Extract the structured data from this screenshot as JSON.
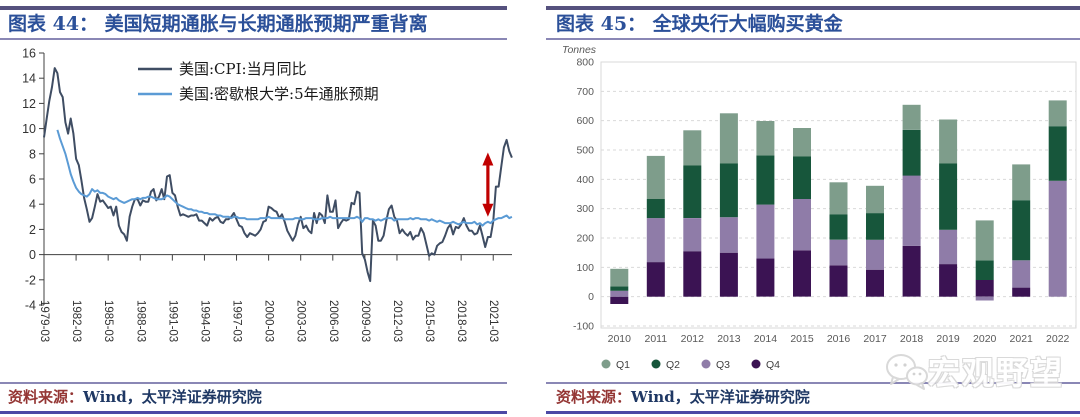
{
  "panels": [
    {
      "title": "图表 44： 美国短期通胀与长期通胀预期严重背离",
      "source_label": "资料来源：",
      "source_text": "Wind，太平洋证券研究院"
    },
    {
      "title": "图表 45： 全球央行大幅购买黄金",
      "source_label": "资料来源：",
      "source_text": "Wind，太平洋证券研究院"
    }
  ],
  "watermark": {
    "text": "宏观野望",
    "icon": "wechat-icon"
  },
  "colors": {
    "rule_top": "#55517E",
    "rule_thin": "#8A87B5",
    "rule_bottom": "#4B48A5",
    "title_text": "#2B5099",
    "source_label": "#943634",
    "source_text": "#1F3864",
    "axis_text": "#333333",
    "axis_line": "#404040",
    "grid_line": "#D9D9D9",
    "muted_text": "#595959",
    "annotation_red": "#C00000"
  },
  "chart_data": [
    {
      "type": "line",
      "title": "美国短期通胀与长期通胀预期严重背离",
      "x_unit": "quarter",
      "x_start_label": "1979-03",
      "x_tick_every_quarters": 12,
      "x_tick_labels": [
        "1979-03",
        "1982-03",
        "1985-03",
        "1988-03",
        "1991-03",
        "1994-03",
        "1997-03",
        "2000-03",
        "2003-03",
        "2006-03",
        "2009-03",
        "2012-03",
        "2015-03",
        "2018-03",
        "2021-03"
      ],
      "ylim": [
        -4,
        16
      ],
      "y_ticks": [
        16,
        14,
        12,
        10,
        8,
        6,
        4,
        2,
        0,
        -2,
        -4
      ],
      "grid": false,
      "legend_position": "top-center",
      "series": [
        {
          "name": "美国:CPI:当月同比",
          "color": "#3F4D63",
          "values": [
            9.3,
            10.8,
            12.2,
            13.3,
            14.8,
            14.4,
            12.9,
            12.5,
            10.5,
            9.6,
            10.8,
            9.6,
            7.6,
            7.1,
            5.9,
            4.5,
            3.6,
            2.6,
            2.9,
            3.8,
            4.8,
            4.2,
            4.3,
            4.0,
            3.7,
            3.8,
            3.1,
            3.8,
            2.3,
            1.8,
            1.6,
            1.1,
            3.0,
            3.8,
            4.4,
            4.4,
            3.9,
            4.3,
            4.2,
            4.2,
            5.0,
            5.2,
            4.3,
            4.6,
            5.2,
            4.4,
            6.2,
            6.3,
            4.9,
            4.7,
            3.8,
            3.1,
            3.2,
            3.1,
            3.0,
            3.1,
            3.1,
            3.2,
            2.7,
            2.7,
            2.5,
            2.3,
            2.9,
            2.7,
            2.9,
            3.0,
            2.6,
            2.5,
            2.8,
            2.8,
            3.0,
            3.3,
            2.8,
            2.3,
            2.2,
            1.7,
            1.4,
            1.7,
            1.6,
            1.5,
            1.7,
            2.0,
            2.6,
            2.7,
            3.8,
            3.7,
            3.5,
            3.4,
            2.9,
            3.2,
            2.6,
            1.9,
            1.5,
            1.1,
            1.5,
            2.4,
            3.0,
            2.1,
            2.3,
            1.9,
            1.7,
            3.3,
            2.5,
            3.3,
            3.1,
            2.5,
            4.7,
            3.4,
            3.4,
            4.3,
            2.1,
            2.5,
            2.8,
            2.7,
            2.8,
            4.1,
            4.0,
            5.0,
            4.9,
            0.1,
            -0.4,
            -1.4,
            -2.1,
            2.7,
            2.3,
            1.1,
            1.1,
            1.5,
            2.7,
            3.6,
            3.9,
            3.0,
            2.7,
            1.7,
            2.0,
            1.7,
            1.5,
            1.8,
            1.2,
            1.5,
            1.5,
            2.1,
            1.7,
            0.8,
            -0.1,
            0.1,
            0.0,
            0.7,
            0.9,
            1.0,
            1.5,
            2.1,
            2.4,
            1.6,
            2.2,
            2.1,
            2.4,
            2.9,
            2.3,
            1.9,
            1.9,
            1.6,
            1.7,
            2.3,
            1.5,
            0.6,
            1.4,
            1.4,
            2.6,
            5.4,
            5.4,
            7.0,
            8.5,
            9.1,
            8.2,
            7.7
          ]
        },
        {
          "name": "美国:密歇根大学:5年通胀预期",
          "color": "#5B9BD5",
          "values": [
            null,
            null,
            null,
            null,
            null,
            9.9,
            9.2,
            8.6,
            8.0,
            7.2,
            6.4,
            5.8,
            5.3,
            5.0,
            4.8,
            4.7,
            4.6,
            4.8,
            5.2,
            5.0,
            5.1,
            4.9,
            4.9,
            4.8,
            4.6,
            4.5,
            4.4,
            4.5,
            4.3,
            4.2,
            4.1,
            4.2,
            4.3,
            4.4,
            4.4,
            4.5,
            4.4,
            4.5,
            4.5,
            4.6,
            4.6,
            4.5,
            4.4,
            4.4,
            4.4,
            4.5,
            4.7,
            4.6,
            4.4,
            4.2,
            4.0,
            3.9,
            3.8,
            3.7,
            3.6,
            3.6,
            3.5,
            3.5,
            3.4,
            3.4,
            3.3,
            3.3,
            3.2,
            3.2,
            3.2,
            3.1,
            3.1,
            3.0,
            3.0,
            3.0,
            2.9,
            3.0,
            3.0,
            2.9,
            2.9,
            2.9,
            2.8,
            2.8,
            2.8,
            2.8,
            2.8,
            2.9,
            2.9,
            2.9,
            3.0,
            2.9,
            2.9,
            2.9,
            2.9,
            2.9,
            2.8,
            2.8,
            2.8,
            2.8,
            2.9,
            2.9,
            2.8,
            2.8,
            2.9,
            2.9,
            2.9,
            2.8,
            2.8,
            2.8,
            2.9,
            2.9,
            2.9,
            3.0,
            2.9,
            2.9,
            2.9,
            2.9,
            2.9,
            2.9,
            2.9,
            2.9,
            2.9,
            3.0,
            2.9,
            2.6,
            2.9,
            2.9,
            2.8,
            2.8,
            2.7,
            2.8,
            2.7,
            2.8,
            2.9,
            2.9,
            2.9,
            2.7,
            2.8,
            2.8,
            2.8,
            2.8,
            2.8,
            2.9,
            2.8,
            2.9,
            2.9,
            2.8,
            2.8,
            2.8,
            2.7,
            2.8,
            2.7,
            2.6,
            2.7,
            2.6,
            2.5,
            2.5,
            2.5,
            2.6,
            2.5,
            2.4,
            2.5,
            2.6,
            2.5,
            2.5,
            2.5,
            2.6,
            2.4,
            2.5,
            2.3,
            2.5,
            2.6,
            2.5,
            2.7,
            2.8,
            2.9,
            2.9,
            3.0,
            3.1,
            2.9,
            3.0
          ]
        }
      ],
      "annotation": {
        "type": "double-headed-arrow",
        "x_index": 166,
        "y_top": 8.1,
        "y_bottom": 3.0,
        "color": "#C00000"
      }
    },
    {
      "type": "stacked-bar",
      "title": "全球央行大幅购买黄金",
      "unit_label": "Tonnes",
      "categories": [
        "2010",
        "2011",
        "2012",
        "2013",
        "2014",
        "2015",
        "2016",
        "2017",
        "2018",
        "2019",
        "2020",
        "2021",
        "2022"
      ],
      "ylim": [
        -100,
        800
      ],
      "y_ticks": [
        800,
        700,
        600,
        500,
        400,
        300,
        200,
        100,
        0,
        -100
      ],
      "grid": true,
      "legend_position": "bottom-left",
      "stack_order_bottom_to_top": [
        "Q4",
        "Q3",
        "Q2",
        "Q1"
      ],
      "series": [
        {
          "name": "Q1",
          "color": "#7E9D8B",
          "values": [
            60,
            147,
            120,
            171,
            117,
            97,
            109,
            93,
            85,
            150,
            136,
            122,
            88
          ]
        },
        {
          "name": "Q2",
          "color": "#17563B",
          "values": [
            15,
            65,
            179,
            183,
            168,
            145,
            87,
            91,
            156,
            226,
            67,
            205,
            186
          ]
        },
        {
          "name": "Q3",
          "color": "#8F7CA8",
          "values": [
            20,
            150,
            113,
            121,
            184,
            175,
            87,
            102,
            240,
            117,
            -13,
            93,
            395
          ]
        },
        {
          "name": "Q4",
          "color": "#3B1353",
          "values": [
            -25,
            118,
            155,
            150,
            130,
            158,
            107,
            92,
            173,
            111,
            57,
            31,
            0
          ]
        }
      ]
    }
  ]
}
